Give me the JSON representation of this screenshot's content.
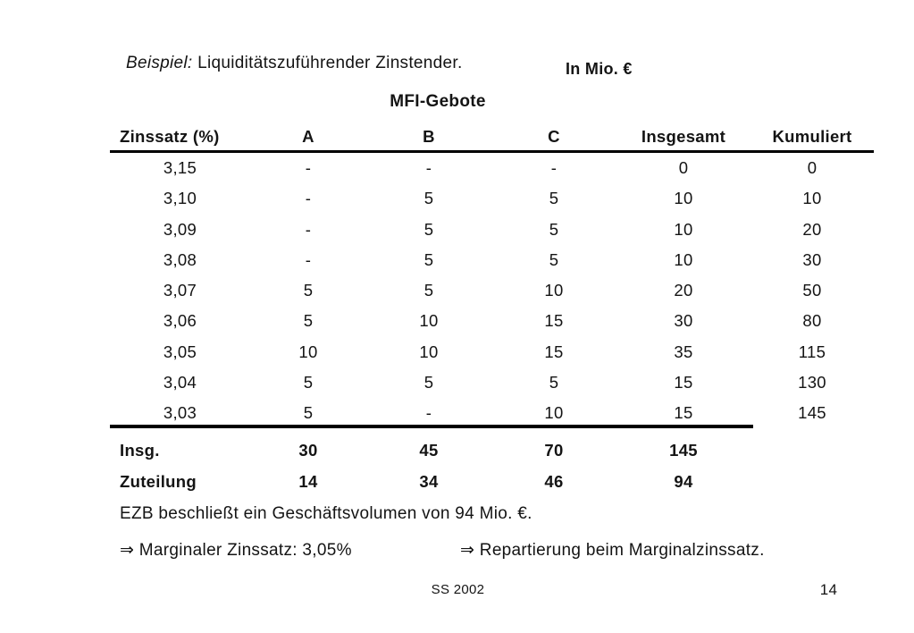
{
  "colors": {
    "background": "#ffffff",
    "text": "#141414",
    "rule": "#000000"
  },
  "header": {
    "example_label": "Beispiel:",
    "title": "Liquiditätszuführender Zinstender.",
    "unit_label": "In Mio. €"
  },
  "table": {
    "group_header": "MFI-Gebote",
    "columns": [
      "Zinssatz (%)",
      "A",
      "B",
      "C",
      "Insgesamt",
      "Kumuliert"
    ],
    "rows": [
      [
        "3,15",
        "-",
        "-",
        "-",
        "0",
        "0"
      ],
      [
        "3,10",
        "-",
        "5",
        "5",
        "10",
        "10"
      ],
      [
        "3,09",
        "-",
        "5",
        "5",
        "10",
        "20"
      ],
      [
        "3,08",
        "-",
        "5",
        "5",
        "10",
        "30"
      ],
      [
        "3,07",
        "5",
        "5",
        "10",
        "20",
        "50"
      ],
      [
        "3,06",
        "5",
        "10",
        "15",
        "30",
        "80"
      ],
      [
        "3,05",
        "10",
        "10",
        "15",
        "35",
        "115"
      ],
      [
        "3,04",
        "5",
        "5",
        "5",
        "15",
        "130"
      ],
      [
        "3,03",
        "5",
        "-",
        "10",
        "15",
        "145"
      ]
    ],
    "totals": [
      {
        "label": "Insg.",
        "values": [
          "30",
          "45",
          "70",
          "145",
          ""
        ]
      },
      {
        "label": "Zuteilung",
        "values": [
          "14",
          "34",
          "46",
          "94",
          ""
        ]
      }
    ]
  },
  "notes": {
    "volume": "EZB beschließt ein Geschäftsvolumen von 94 Mio. €.",
    "arrow_glyph": "⇒",
    "marginal": "⇒ Marginaler Zinssatz: 3,05%",
    "repartierung": "⇒ Repartierung beim Marginalzinssatz."
  },
  "footer": {
    "semester": "SS 2002",
    "page": "14"
  }
}
